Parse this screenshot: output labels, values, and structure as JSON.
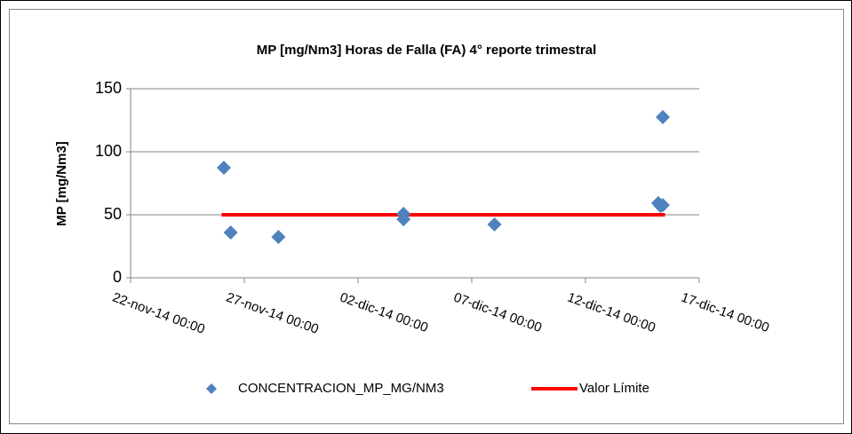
{
  "chart_data": {
    "type": "scatter",
    "title": "MP [mg/Nm3] Horas de Falla (FA) 4° reporte trimestral",
    "y_label": "MP [mg/Nm3]",
    "xlim": [
      41965,
      41990
    ],
    "xticks": [
      {
        "value": 41965,
        "label": "22-nov-14 00:00"
      },
      {
        "value": 41970,
        "label": "27-nov-14 00:00"
      },
      {
        "value": 41975,
        "label": "02-dic-14 00:00"
      },
      {
        "value": 41980,
        "label": "07-dic-14 00:00"
      },
      {
        "value": 41985,
        "label": "12-dic-14 00:00"
      },
      {
        "value": 41990,
        "label": "17-dic-14 00:00"
      }
    ],
    "ylim": [
      0,
      150
    ],
    "yticks": [
      0,
      50,
      100,
      150
    ],
    "grid": true,
    "series": [
      {
        "name": "CONCENTRACION_MP_MG/NM3",
        "color": "#4f81bd",
        "mode": "markers",
        "x": [
          41969.1,
          41969.4,
          41971.5,
          41977.0,
          41977.0,
          41981.0,
          41988.2,
          41988.3,
          41988.4,
          41988.4
        ],
        "values": [
          87.3,
          35.9,
          32.4,
          50.7,
          46.5,
          42.3,
          59.2,
          57,
          57.7,
          127.5
        ]
      },
      {
        "name": "Valor Límite",
        "color": "#ff0000",
        "mode": "line",
        "x": [
          41969,
          41988.5
        ],
        "values": [
          50,
          50
        ]
      }
    ]
  }
}
